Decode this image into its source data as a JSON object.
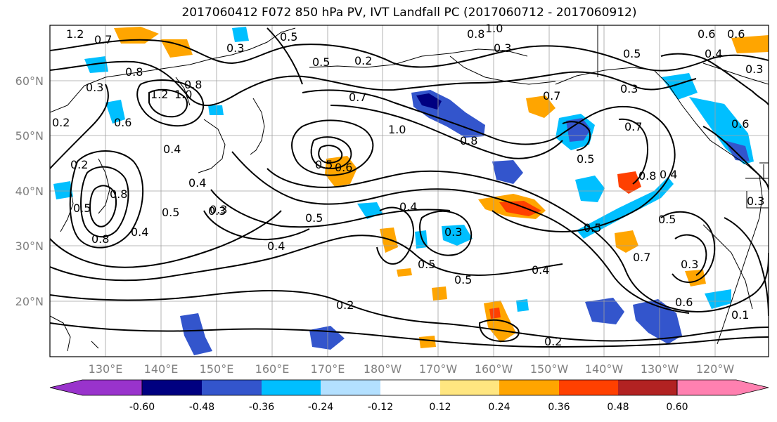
{
  "title": "2017060412 F072 850 hPa PV, IVT Landfall PC (2017060712 - 2017060912)",
  "lat_labels": [
    "60°N",
    "50°N",
    "40°N",
    "30°N",
    "20°N"
  ],
  "lon_labels": [
    "130°E",
    "140°E",
    "150°E",
    "160°E",
    "170°E",
    "180°W",
    "170°W",
    "160°W",
    "150°W",
    "140°W",
    "130°W",
    "120°W"
  ],
  "colorbar": {
    "colors": [
      "#9933cc",
      "#000080",
      "#3355cc",
      "#00bfff",
      "#b3e0ff",
      "#ffffff",
      "#ffe680",
      "#ffa500",
      "#ff4000",
      "#b22222",
      "#ff80b0"
    ],
    "tick_labels": [
      "-0.60",
      "-0.48",
      "-0.36",
      "-0.24",
      "-0.12",
      "0.12",
      "0.24",
      "0.36",
      "0.48",
      "0.60"
    ]
  },
  "contour_labels": [
    "1.2",
    "0.7",
    "0.5",
    "0.3",
    "0.8",
    "1.0",
    "0.3",
    "0.2",
    "0.6",
    "0.6",
    "0.5",
    "0.3",
    "0.4",
    "0.8",
    "1.2",
    "1.0",
    "0.3",
    "0.6",
    "0.8",
    "0.2",
    "0.4",
    "0.4",
    "0.5",
    "0.8",
    "0.5",
    "0.3",
    "0.4",
    "0.8",
    "0.7",
    "1.0",
    "0.5",
    "0.6",
    "0.8",
    "0.5",
    "0.4",
    "0.5",
    "0.3",
    "0.3",
    "0.5",
    "0.5",
    "0.4",
    "0.2",
    "0.2",
    "0.4",
    "0.5",
    "0.7",
    "0.7",
    "0.8",
    "0.4",
    "0.5",
    "0.7",
    "0.5",
    "0.6",
    "0.3",
    "0.6",
    "0.3",
    "0.3",
    "0.1",
    "0.2"
  ]
}
